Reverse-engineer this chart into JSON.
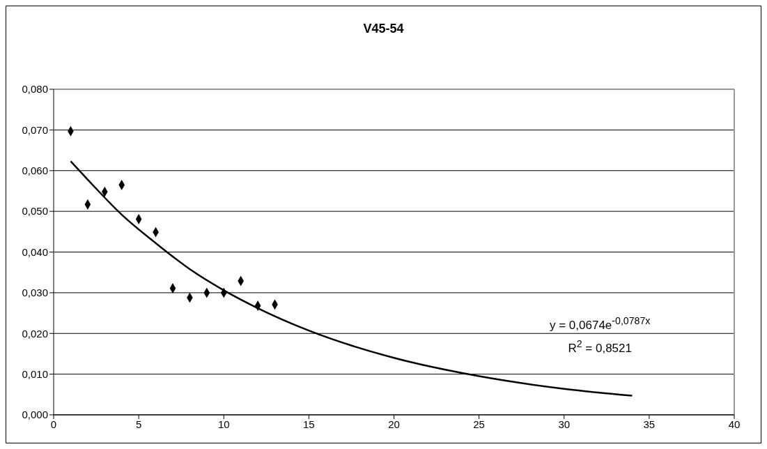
{
  "chart_data": {
    "type": "scatter",
    "title": "V45-54",
    "series": [
      {
        "color": "#000000",
        "marker": "diamond",
        "x": [
          1,
          2,
          3,
          4,
          5,
          6,
          7,
          8,
          9,
          10,
          11,
          12,
          13
        ],
        "values": [
          0.0697,
          0.0517,
          0.0548,
          0.0565,
          0.0481,
          0.0449,
          0.0311,
          0.0288,
          0.03,
          0.03,
          0.0329,
          0.0268,
          0.0271
        ]
      },
      {
        "type": "line",
        "color": "#000000",
        "marker": "none",
        "x": [
          1,
          2,
          4,
          6,
          8,
          10,
          12,
          15,
          20,
          25,
          30,
          34
        ],
        "values": [
          0.0623,
          0.0578,
          0.0492,
          0.0422,
          0.0358,
          0.0306,
          0.0262,
          0.0207,
          0.014,
          0.0095,
          0.0064,
          0.0047
        ]
      }
    ],
    "annotations": [
      "y = 0,0674e$^{-0,0787x}$",
      "R$^{2}$ = 0,8521"
    ],
    "xlim": [
      0,
      40
    ],
    "xticks": [
      0,
      5,
      10,
      15,
      20,
      25,
      30,
      35,
      40
    ],
    "ylim": [
      0,
      0.08
    ],
    "yticks": [
      {
        "value": 0,
        "label": "0,000"
      },
      {
        "value": 0.01,
        "label": "0,010"
      },
      {
        "value": 0.02,
        "label": "0,020"
      },
      {
        "value": 0.03,
        "label": "0,030"
      },
      {
        "value": 0.04,
        "label": "0,040"
      },
      {
        "value": 0.05,
        "label": "0,050"
      },
      {
        "value": 0.06,
        "label": "0,060"
      },
      {
        "value": 0.07,
        "label": "0,070"
      },
      {
        "value": 0.08,
        "label": "0,080"
      }
    ],
    "grid": "y"
  }
}
